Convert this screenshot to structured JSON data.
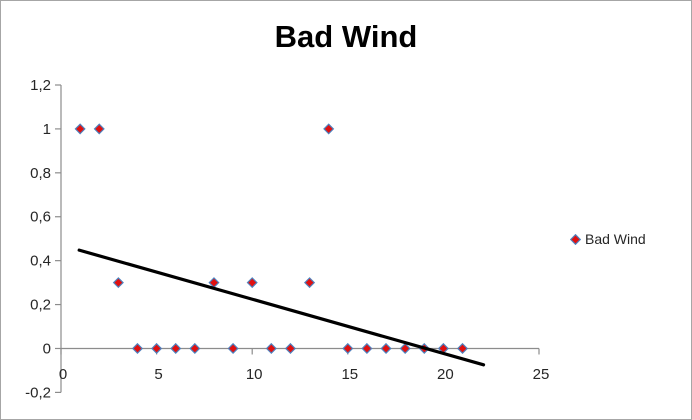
{
  "window": {
    "background": "#ffffff",
    "border_color": "#a6a6a6"
  },
  "title": {
    "text": "Bad Wind"
  },
  "legend": {
    "label": "Bad Wind",
    "marker": "diamond"
  },
  "colors": {
    "marker_fill": "#e01010",
    "marker_border": "#4f81bd",
    "trendline": "#000000",
    "axis": "#8c8c8c",
    "tick_text": "#262626",
    "title_text": "#000000"
  },
  "chart_data": {
    "type": "scatter",
    "title": "Bad Wind",
    "xlabel": "",
    "ylabel": "",
    "xlim": [
      0,
      25
    ],
    "ylim": [
      -0.2,
      1.2
    ],
    "grid": false,
    "legend_position": "right",
    "x_tick_values": [
      0,
      5,
      10,
      15,
      20,
      25
    ],
    "x_tick_labels": [
      "0",
      "5",
      "10",
      "15",
      "20",
      "25"
    ],
    "y_tick_values": [
      -0.2,
      0,
      0.2,
      0.4,
      0.6,
      0.8,
      1,
      1.2
    ],
    "y_tick_labels": [
      "-0,2",
      "0",
      "0,2",
      "0,4",
      "0,6",
      "0,8",
      "1",
      "1,2"
    ],
    "series": [
      {
        "name": "Bad Wind",
        "marker": "diamond",
        "x": [
          1,
          2,
          3,
          4,
          5,
          6,
          7,
          8,
          9,
          10,
          11,
          12,
          13,
          14,
          15,
          16,
          17,
          18,
          19,
          20,
          21
        ],
        "y": [
          1,
          1,
          0.3,
          0,
          0,
          0,
          0,
          0.3,
          0,
          0.3,
          0,
          0,
          0.3,
          1,
          0,
          0,
          0,
          0,
          0,
          0,
          0
        ]
      }
    ],
    "trendline": {
      "type": "linear",
      "slope": -0.0247,
      "intercept": 0.4714,
      "x_start": 0.95,
      "x_end": 22.1
    }
  }
}
